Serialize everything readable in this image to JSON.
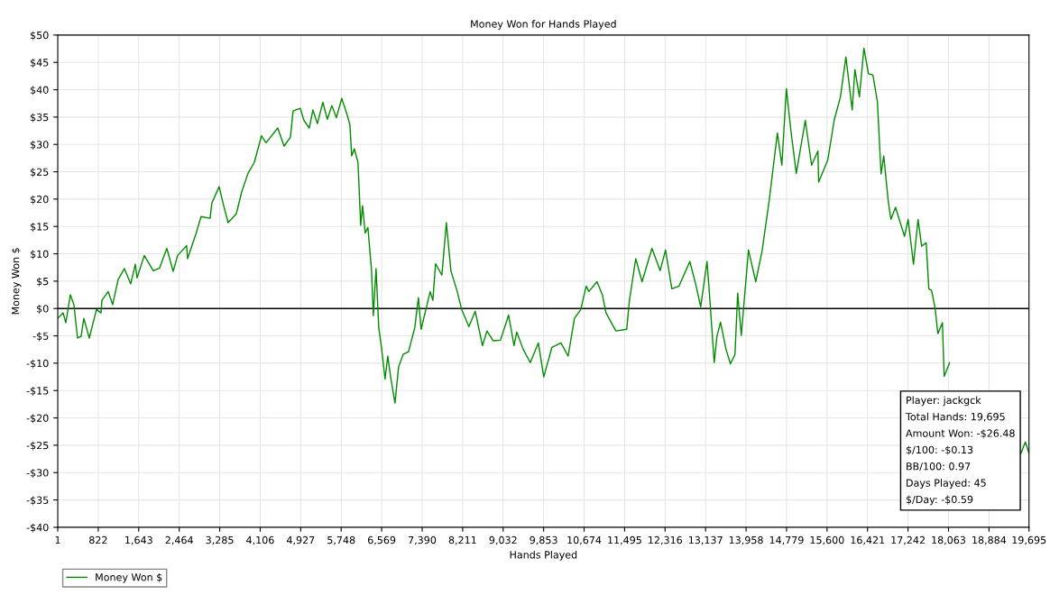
{
  "chart_data": {
    "type": "line",
    "title": "Money Won for Hands Played",
    "xlabel": "Hands Played",
    "ylabel": "Money Won $",
    "xlim": [
      1,
      19695
    ],
    "xticks": [
      {
        "value": 1,
        "label": "1"
      },
      {
        "value": 822,
        "label": "822"
      },
      {
        "value": 1643,
        "label": "1,643"
      },
      {
        "value": 2464,
        "label": "2,464"
      },
      {
        "value": 3285,
        "label": "3,285"
      },
      {
        "value": 4106,
        "label": "4,106"
      },
      {
        "value": 4927,
        "label": "4,927"
      },
      {
        "value": 5748,
        "label": "5,748"
      },
      {
        "value": 6569,
        "label": "6,569"
      },
      {
        "value": 7390,
        "label": "7,390"
      },
      {
        "value": 8211,
        "label": "8,211"
      },
      {
        "value": 9032,
        "label": "9,032"
      },
      {
        "value": 9853,
        "label": "9,853"
      },
      {
        "value": 10674,
        "label": "10,674"
      },
      {
        "value": 11495,
        "label": "11,495"
      },
      {
        "value": 12316,
        "label": "12,316"
      },
      {
        "value": 13137,
        "label": "13,137"
      },
      {
        "value": 13958,
        "label": "13,958"
      },
      {
        "value": 14779,
        "label": "14,779"
      },
      {
        "value": 15600,
        "label": "15,600"
      },
      {
        "value": 16421,
        "label": "16,421"
      },
      {
        "value": 17242,
        "label": "17,242"
      },
      {
        "value": 18063,
        "label": "18,063"
      },
      {
        "value": 18884,
        "label": "18,884"
      },
      {
        "value": 19695,
        "label": "19,695"
      }
    ],
    "ylim": [
      -40,
      50
    ],
    "yticks": [
      {
        "value": -40,
        "label": "-$40"
      },
      {
        "value": -35,
        "label": "-$35"
      },
      {
        "value": -30,
        "label": "-$30"
      },
      {
        "value": -25,
        "label": "-$25"
      },
      {
        "value": -20,
        "label": "-$20"
      },
      {
        "value": -15,
        "label": "-$15"
      },
      {
        "value": -10,
        "label": "-$10"
      },
      {
        "value": -5,
        "label": "-$5"
      },
      {
        "value": 0,
        "label": "$0"
      },
      {
        "value": 5,
        "label": "$5"
      },
      {
        "value": 10,
        "label": "$10"
      },
      {
        "value": 15,
        "label": "$15"
      },
      {
        "value": 20,
        "label": "$20"
      },
      {
        "value": 25,
        "label": "$25"
      },
      {
        "value": 30,
        "label": "$30"
      },
      {
        "value": 35,
        "label": "$35"
      },
      {
        "value": 40,
        "label": "$40"
      },
      {
        "value": 45,
        "label": "$45"
      },
      {
        "value": 50,
        "label": "$50"
      }
    ],
    "grid": true,
    "legend": "bottom left",
    "marker": "none",
    "line_style": "solid",
    "ref_lines": [
      {
        "axis": "y",
        "value": 0,
        "color": "#000000"
      }
    ],
    "annotations": [
      "Player: jackgck",
      "Total Hands: 19,695",
      "Amount Won: -$26.48",
      "$/100: -$0.13",
      "BB/100: 0.97",
      "Days Played: 45",
      "$/Day: -$0.59"
    ],
    "series": [
      {
        "name": "Money Won $",
        "color": "#008c00",
        "x": [
          1,
          110,
          165,
          256,
          329,
          402,
          475,
          530,
          640,
          786,
          878,
          896,
          1024,
          1115,
          1225,
          1353,
          1481,
          1573,
          1609,
          1755,
          1938,
          2066,
          2213,
          2341,
          2432,
          2615,
          2633,
          2798,
          2907,
          3090,
          3127,
          3273,
          3365,
          3456,
          3621,
          3730,
          3858,
          3986,
          4133,
          4224,
          4462,
          4590,
          4718,
          4773,
          4919,
          4992,
          5102,
          5175,
          5266,
          5376,
          5468,
          5559,
          5650,
          5760,
          5870,
          5925,
          5961,
          6016,
          6089,
          6144,
          6181,
          6235,
          6290,
          6364,
          6400,
          6455,
          6510,
          6565,
          6638,
          6693,
          6748,
          6839,
          6912,
          7003,
          7113,
          7241,
          7314,
          7369,
          7479,
          7552,
          7607,
          7662,
          7790,
          7881,
          7973,
          8101,
          8192,
          8338,
          8466,
          8613,
          8704,
          8832,
          8978,
          9143,
          9253,
          9308,
          9436,
          9582,
          9746,
          9856,
          10021,
          10204,
          10350,
          10478,
          10606,
          10716,
          10770,
          10935,
          11045,
          11118,
          11319,
          11538,
          11593,
          11721,
          11849,
          12050,
          12215,
          12325,
          12453,
          12599,
          12818,
          12946,
          13038,
          13166,
          13221,
          13312,
          13367,
          13440,
          13550,
          13641,
          13733,
          13788,
          13861,
          14007,
          14154,
          14282,
          14428,
          14593,
          14684,
          14775,
          14867,
          14976,
          15159,
          15287,
          15415,
          15430,
          15616,
          15744,
          15872,
          15982,
          16110,
          16165,
          16256,
          16348,
          16439,
          16530,
          16622,
          16695,
          16750,
          16841,
          16896,
          16988,
          17171,
          17244,
          17353,
          17445,
          17518,
          17610,
          17664,
          17719,
          17792,
          17847,
          17939,
          17975,
          18085,
          18158,
          18800,
          19530,
          19621,
          19695
        ],
        "values": [
          -1.8,
          -0.8,
          -2.6,
          2.5,
          0.7,
          -5.4,
          -5.1,
          -1.8,
          -5.4,
          -0.2,
          -0.8,
          1.5,
          3.1,
          0.7,
          5.3,
          7.3,
          4.5,
          8.1,
          5.6,
          9.7,
          6.9,
          7.4,
          11.0,
          6.8,
          9.7,
          11.5,
          9.1,
          13.5,
          16.8,
          16.5,
          19.3,
          22.3,
          18.8,
          15.7,
          17.3,
          21.3,
          24.7,
          26.7,
          31.6,
          30.3,
          33.0,
          29.7,
          31.3,
          36.1,
          36.6,
          34.4,
          33.0,
          36.3,
          33.8,
          37.7,
          34.6,
          37.1,
          34.9,
          38.4,
          35.4,
          33.6,
          27.9,
          29.2,
          26.7,
          15.2,
          18.8,
          13.8,
          14.8,
          6.9,
          -1.3,
          7.3,
          -3.5,
          -7.1,
          -12.9,
          -8.7,
          -12.4,
          -17.3,
          -10.7,
          -8.4,
          -7.9,
          -3.5,
          2.0,
          -3.8,
          0.3,
          3.1,
          1.5,
          8.2,
          6.1,
          15.7,
          6.9,
          3.1,
          -0.2,
          -3.3,
          -0.5,
          -6.8,
          -4.1,
          -5.9,
          -5.8,
          -1.2,
          -6.8,
          -4.3,
          -7.4,
          -9.9,
          -6.3,
          -12.5,
          -7.1,
          -6.3,
          -8.7,
          -1.8,
          -0.2,
          4.1,
          3.1,
          4.9,
          2.5,
          -0.8,
          -4.1,
          -3.8,
          1.5,
          9.1,
          4.9,
          11.0,
          6.9,
          10.7,
          3.6,
          4.1,
          8.6,
          4.1,
          0.3,
          8.6,
          2.0,
          -9.9,
          -5.1,
          -2.5,
          -7.4,
          -10.1,
          -8.4,
          2.8,
          -4.9,
          10.7,
          4.9,
          10.5,
          19.8,
          32.1,
          26.2,
          40.2,
          32.5,
          24.7,
          34.4,
          26.2,
          28.8,
          23.1,
          27.2,
          34.4,
          38.7,
          46.0,
          36.3,
          43.7,
          38.7,
          47.6,
          42.9,
          42.7,
          37.7,
          24.6,
          27.9,
          19.6,
          16.3,
          18.5,
          13.2,
          16.3,
          8.1,
          16.3,
          11.4,
          12.0,
          3.6,
          3.3,
          0,
          -4.6,
          -2.6,
          -12.4,
          -9.9,
          null,
          null,
          -26.5,
          -24.4,
          -26.5
        ]
      }
    ]
  }
}
